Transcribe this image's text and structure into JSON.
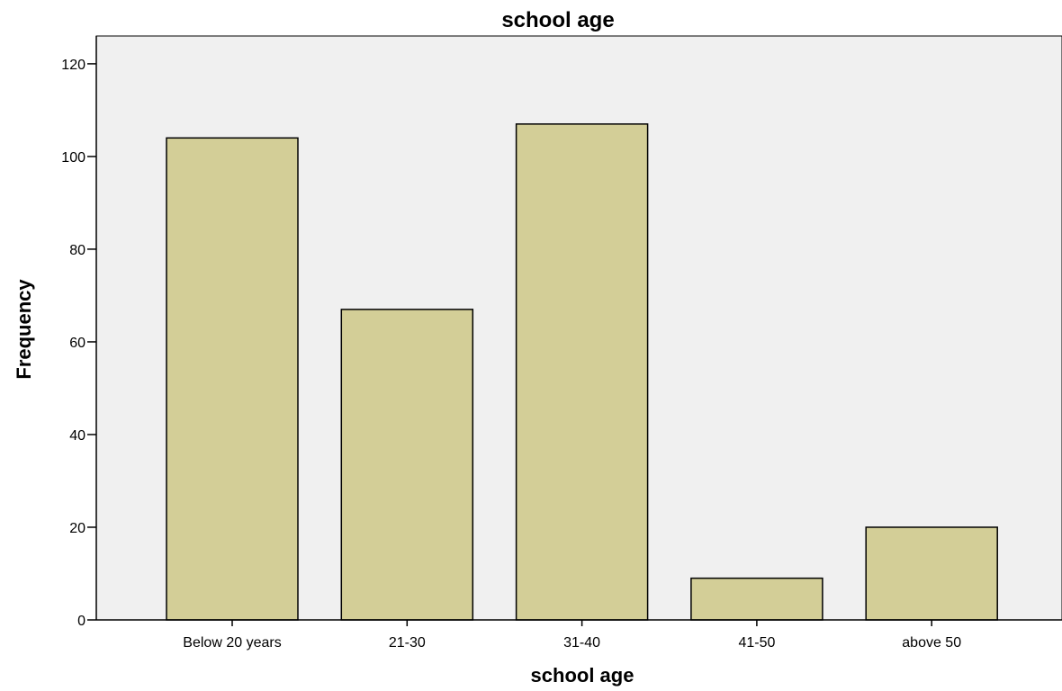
{
  "chart_data": {
    "type": "bar",
    "title": "school age",
    "xlabel": "school age",
    "ylabel": "Frequency",
    "categories": [
      "Below 20 years",
      "21-30",
      "31-40",
      "41-50",
      "above 50"
    ],
    "values": [
      104,
      67,
      107,
      9,
      20
    ],
    "ylim": [
      0,
      126
    ],
    "yticks": [
      0,
      20,
      40,
      60,
      80,
      100,
      120
    ],
    "grid": false,
    "colors": {
      "plot_background": "#f0f0f0",
      "bar_fill": "#d3ce97",
      "bar_stroke": "#000000",
      "axis": "#000000"
    }
  }
}
